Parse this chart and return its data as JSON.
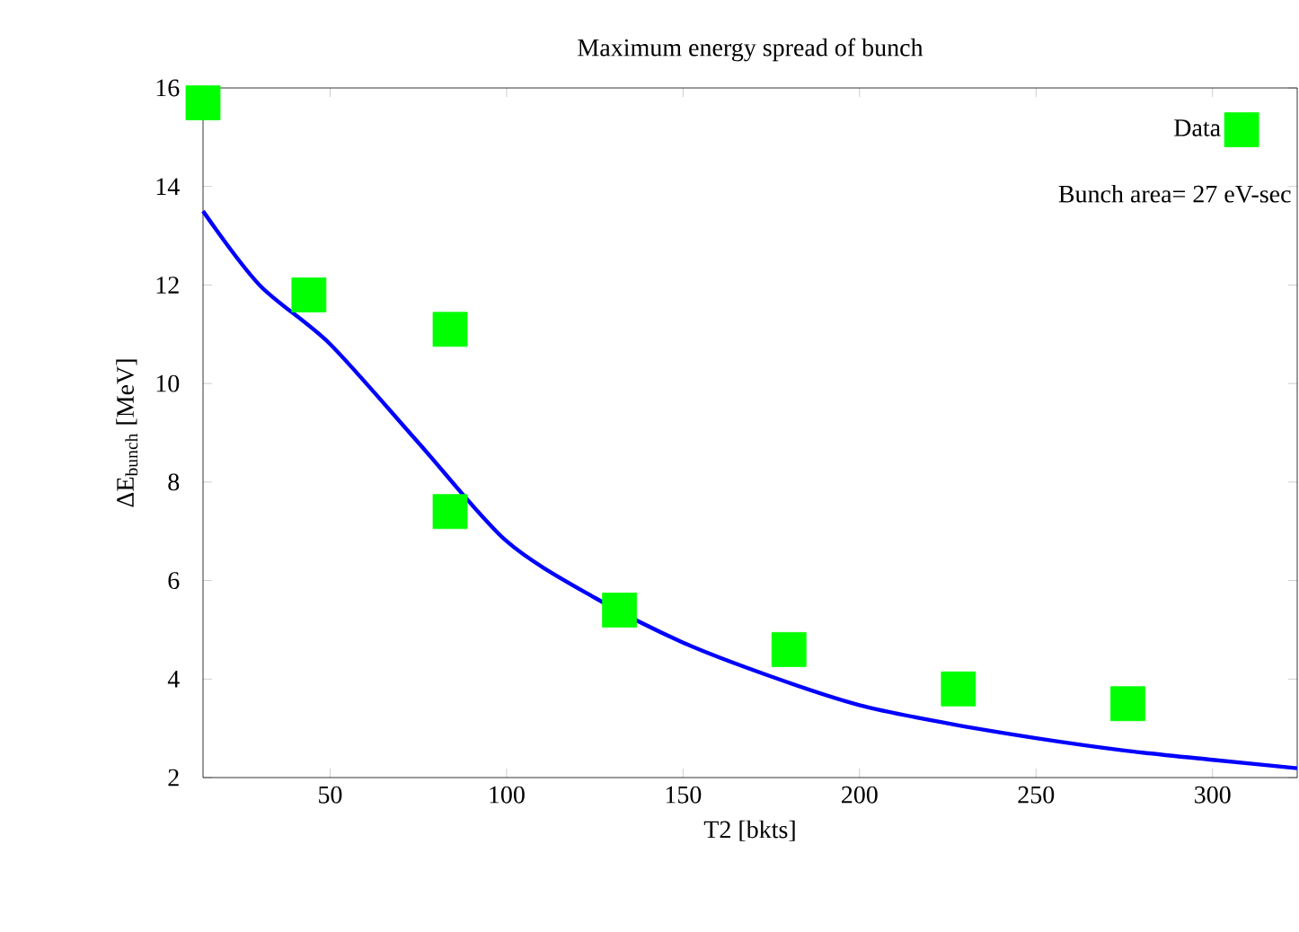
{
  "chart_data": {
    "type": "scatter",
    "title": "Maximum energy spread of bunch",
    "xlabel": "T2 [bkts]",
    "ylabel": "ΔE$_{bunch}$ [MeV]",
    "annotations": [
      "Bunch area= 27 eV-sec"
    ],
    "series": [
      {
        "name": "Data",
        "type": "scatter",
        "color": "#00ff00",
        "marker": "square",
        "x": [
          14,
          44,
          84,
          84,
          132,
          180,
          228,
          276
        ],
        "values": [
          15.7,
          11.8,
          11.1,
          7.4,
          5.4,
          4.6,
          3.8,
          3.5
        ]
      },
      {
        "type": "line",
        "color": "#0000ff",
        "line_style": "solid",
        "x": [
          14,
          30,
          50,
          75,
          100,
          125,
          150,
          175,
          200,
          225,
          250,
          275,
          300,
          324
        ],
        "values": [
          13.5,
          12.0,
          10.8,
          8.8,
          6.8,
          5.65,
          4.74,
          4.05,
          3.47,
          3.1,
          2.8,
          2.55,
          2.36,
          2.19
        ]
      }
    ],
    "xlim": [
      14,
      324
    ],
    "ylim": [
      2,
      16
    ],
    "xticks": [
      50,
      100,
      150,
      200,
      250,
      300
    ],
    "yticks": [
      2,
      4,
      6,
      8,
      10,
      12,
      14,
      16
    ],
    "grid": false,
    "legend": "top right"
  }
}
